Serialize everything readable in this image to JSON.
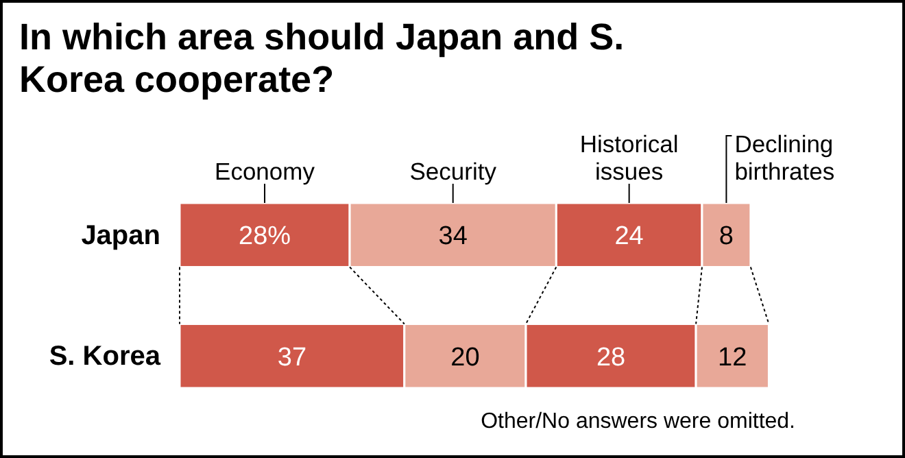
{
  "chart_data": {
    "type": "bar",
    "orientation": "horizontal",
    "stacked": true,
    "title": "In which area should Japan and S. Korea cooperate?",
    "categories": [
      "Japan",
      "S. Korea"
    ],
    "tick_labels": "y",
    "annotations": [
      "Other/No answers were omitted."
    ],
    "series": [
      {
        "name": "Economy",
        "color": "#d0584a",
        "values": [
          28,
          37
        ],
        "value_labels": [
          "28%",
          "37"
        ]
      },
      {
        "name": "Security",
        "color": "#e8a898",
        "values": [
          34,
          20
        ],
        "value_labels": [
          "34",
          "20"
        ]
      },
      {
        "name": "Historical issues",
        "color": "#d0584a",
        "values": [
          24,
          28
        ],
        "value_labels": [
          "24",
          "28"
        ]
      },
      {
        "name": "Declining birthrates",
        "color": "#e8a898",
        "values": [
          8,
          12
        ],
        "value_labels": [
          "8",
          "12"
        ]
      }
    ]
  }
}
